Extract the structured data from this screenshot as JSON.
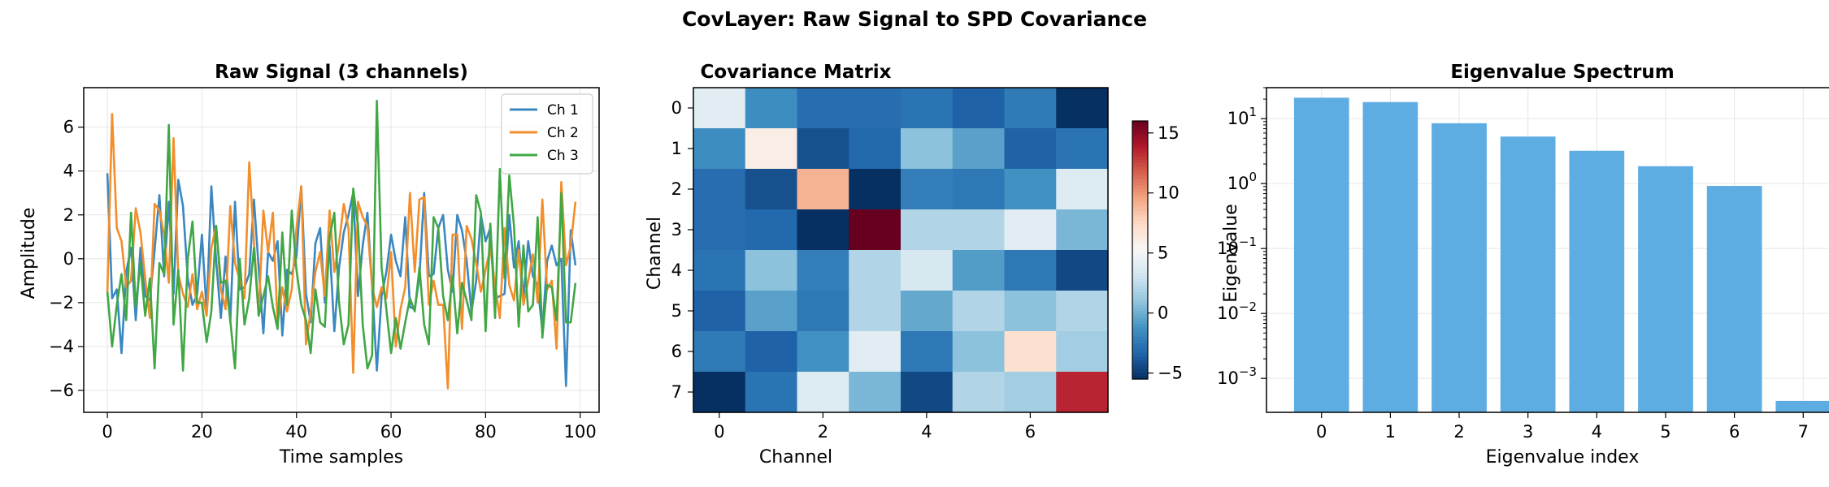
{
  "suptitle": "CovLayer: Raw Signal to SPD Covariance",
  "chart_data": [
    {
      "type": "line",
      "title": "Raw Signal (3 channels)",
      "xlabel": "Time samples",
      "ylabel": "Amplitude",
      "xlim": [
        -5,
        104
      ],
      "ylim": [
        -7,
        7.8
      ],
      "xticks": [
        0,
        20,
        40,
        60,
        80,
        100
      ],
      "yticks": [
        -6,
        -4,
        -2,
        0,
        2,
        4,
        6
      ],
      "grid": true,
      "legend": "top-right",
      "x": [
        0,
        1,
        2,
        3,
        4,
        5,
        6,
        7,
        8,
        9,
        10,
        11,
        12,
        13,
        14,
        15,
        16,
        17,
        18,
        19,
        20,
        21,
        22,
        23,
        24,
        25,
        26,
        27,
        28,
        29,
        30,
        31,
        32,
        33,
        34,
        35,
        36,
        37,
        38,
        39,
        40,
        41,
        42,
        43,
        44,
        45,
        46,
        47,
        48,
        49,
        50,
        51,
        52,
        53,
        54,
        55,
        56,
        57,
        58,
        59,
        60,
        61,
        62,
        63,
        64,
        65,
        66,
        67,
        68,
        69,
        70,
        71,
        72,
        73,
        74,
        75,
        76,
        77,
        78,
        79,
        80,
        81,
        82,
        83,
        84,
        85,
        86,
        87,
        88,
        89,
        90,
        91,
        92,
        93,
        94,
        95,
        96,
        97,
        98,
        99
      ],
      "series": [
        {
          "name": "Ch 1",
          "color": "#3b87c0",
          "values": [
            3.9,
            -1.8,
            -1.4,
            -4.3,
            -0.6,
            0.5,
            -2.8,
            0.5,
            -1.7,
            -1.9,
            0.4,
            2.9,
            -0.8,
            2.6,
            -1.6,
            3.6,
            2.4,
            -0.9,
            -2.1,
            -1.6,
            1.1,
            -2.4,
            3.3,
            -0.1,
            -2.7,
            0.1,
            -2.9,
            2.6,
            -1.4,
            -1.3,
            -0.7,
            2.7,
            -0.4,
            -3.4,
            0.3,
            -0.1,
            0.8,
            -3.5,
            -0.5,
            -0.7,
            0.1,
            3.3,
            -1.6,
            -2.9,
            0.7,
            1.4,
            -2.0,
            0.6,
            -3.3,
            -0.4,
            1.2,
            2.0,
            3.0,
            -1.7,
            0.6,
            2.1,
            -1.3,
            -5.1,
            -1.7,
            -0.6,
            1.1,
            -0.1,
            -0.8,
            1.9,
            -2.2,
            -2.3,
            -0.8,
            3.0,
            -0.8,
            -0.7,
            1.4,
            2.0,
            -0.5,
            -1.5,
            2.0,
            1.3,
            -0.1,
            -2.4,
            -1.0,
            2.0,
            0.8,
            1.4,
            -1.8,
            -1.7,
            -1.6,
            2.0,
            -0.4,
            0.8,
            -1.8,
            0.8,
            -0.8,
            -1.2,
            -3.3,
            -0.1,
            0.6,
            -0.3,
            0.0,
            -5.8,
            1.3,
            -0.3
          ]
        },
        {
          "name": "Ch 2",
          "color": "#f28e2b",
          "values": [
            -1.5,
            6.6,
            1.4,
            0.8,
            -1.3,
            -1.0,
            2.3,
            1.2,
            -0.9,
            -2.7,
            2.5,
            2.2,
            1.1,
            -1.1,
            5.5,
            -0.7,
            -1.6,
            -2.2,
            -0.7,
            -2.3,
            -1.5,
            -2.6,
            0.5,
            1.5,
            -1.4,
            -2.3,
            2.4,
            -0.2,
            -1.0,
            -1.8,
            4.4,
            0.8,
            -2.5,
            2.2,
            0.3,
            2.1,
            -3.0,
            -1.3,
            -2.4,
            -1.4,
            1.4,
            3.3,
            -3.9,
            -2.4,
            -0.6,
            0.3,
            -1.7,
            2.2,
            -0.6,
            0.7,
            2.5,
            1.4,
            -5.2,
            2.6,
            1.9,
            1.5,
            -1.3,
            -2.2,
            -1.3,
            -1.8,
            0.3,
            -4.0,
            -2.3,
            -1.3,
            3.0,
            -0.6,
            2.7,
            2.8,
            -2.1,
            -1.0,
            -2.1,
            -2.1,
            -5.9,
            1.1,
            1.1,
            -3.2,
            1.5,
            0.9,
            -0.2,
            -1.5,
            -0.5,
            0.5,
            -1.2,
            -2.7,
            1.4,
            -1.2,
            -1.9,
            0.4,
            -2.1,
            -1.0,
            0.2,
            -2.0,
            2.7,
            -1.4,
            -1.0,
            -4.1,
            3.5,
            -0.3,
            0.6,
            2.6
          ]
        },
        {
          "name": "Ch 3",
          "color": "#41a745",
          "values": [
            -1.5,
            -4.0,
            -2.1,
            -0.7,
            -2.8,
            2.1,
            -2.2,
            -0.2,
            -2.6,
            -0.9,
            -5.0,
            -0.2,
            -0.7,
            6.1,
            -3.0,
            -0.5,
            -5.1,
            0.0,
            1.7,
            -2.0,
            -2.0,
            -3.8,
            -2.4,
            1.5,
            -1.1,
            -1.0,
            -2.8,
            -5.0,
            0.0,
            -3.0,
            -1.8,
            0.5,
            -2.6,
            -1.7,
            -0.8,
            -2.2,
            -3.2,
            1.2,
            -2.1,
            2.2,
            -0.5,
            -2.1,
            -2.8,
            -4.3,
            -1.4,
            -2.9,
            -3.1,
            1.0,
            2.1,
            -2.0,
            -3.9,
            -3.0,
            3.2,
            1.5,
            -3.0,
            -5.0,
            -4.4,
            7.2,
            -0.4,
            -2.3,
            -4.3,
            -2.7,
            -4.1,
            -2.9,
            -1.8,
            -2.4,
            -0.4,
            -3.0,
            -3.9,
            1.9,
            1.4,
            -1.7,
            -2.8,
            -0.8,
            -3.4,
            -1.1,
            -1.9,
            -2.8,
            2.9,
            2.1,
            -3.3,
            1.6,
            -2.7,
            4.1,
            -0.9,
            3.8,
            1.5,
            -3.1,
            0.6,
            -2.4,
            -2.1,
            1.9,
            -3.6,
            -1.2,
            -1.3,
            -2.8,
            3.0,
            -2.9,
            -2.9,
            -1.1
          ]
        }
      ]
    },
    {
      "type": "heatmap",
      "title": "Covariance Matrix",
      "xlabel": "Channel",
      "ylabel": "Channel",
      "xticks": [
        0,
        2,
        4,
        6
      ],
      "yticks": [
        0,
        1,
        2,
        3,
        4,
        5,
        6,
        7
      ],
      "colormap": "RdBu_r",
      "vmin": -5.5,
      "vmax": 16,
      "colorbar_ticks": [
        -5,
        0,
        5,
        10,
        15
      ],
      "matrix": [
        [
          4.0,
          -1.5,
          -3.0,
          -3.0,
          -2.7,
          -3.5,
          -2.4,
          -5.5
        ],
        [
          -1.5,
          6.0,
          -4.2,
          -3.2,
          0.8,
          -0.6,
          -3.5,
          -2.7
        ],
        [
          -3.0,
          -4.2,
          9.0,
          -5.5,
          -2.2,
          -2.5,
          -1.3,
          3.8
        ],
        [
          -3.0,
          -3.2,
          -5.5,
          16.0,
          2.0,
          2.0,
          4.0,
          0.3
        ],
        [
          -2.7,
          0.8,
          -2.2,
          2.0,
          3.5,
          -0.8,
          -2.5,
          -4.5
        ],
        [
          -3.5,
          -0.6,
          -2.5,
          2.0,
          -0.3,
          2.0,
          0.8,
          2.0
        ],
        [
          -2.4,
          -3.5,
          -1.3,
          4.0,
          -2.5,
          0.8,
          7.0,
          1.5
        ],
        [
          -5.5,
          -2.7,
          3.8,
          0.3,
          -4.5,
          2.0,
          1.5,
          13.5
        ]
      ]
    },
    {
      "type": "bar",
      "title": "Eigenvalue Spectrum",
      "xlabel": "Eigenvalue index",
      "ylabel": "Eigenvalue",
      "yscale": "log",
      "ylim": [
        0.0003,
        30
      ],
      "categories": [
        "0",
        "1",
        "2",
        "3",
        "4",
        "5",
        "6",
        "7"
      ],
      "values": [
        21,
        18,
        8.5,
        5.3,
        3.2,
        1.85,
        0.92,
        0.00045
      ],
      "color": "#5dade2",
      "yticks": [
        "10^1",
        "10^0",
        "10^-1",
        "10^-2",
        "10^-3"
      ],
      "grid": true
    }
  ]
}
